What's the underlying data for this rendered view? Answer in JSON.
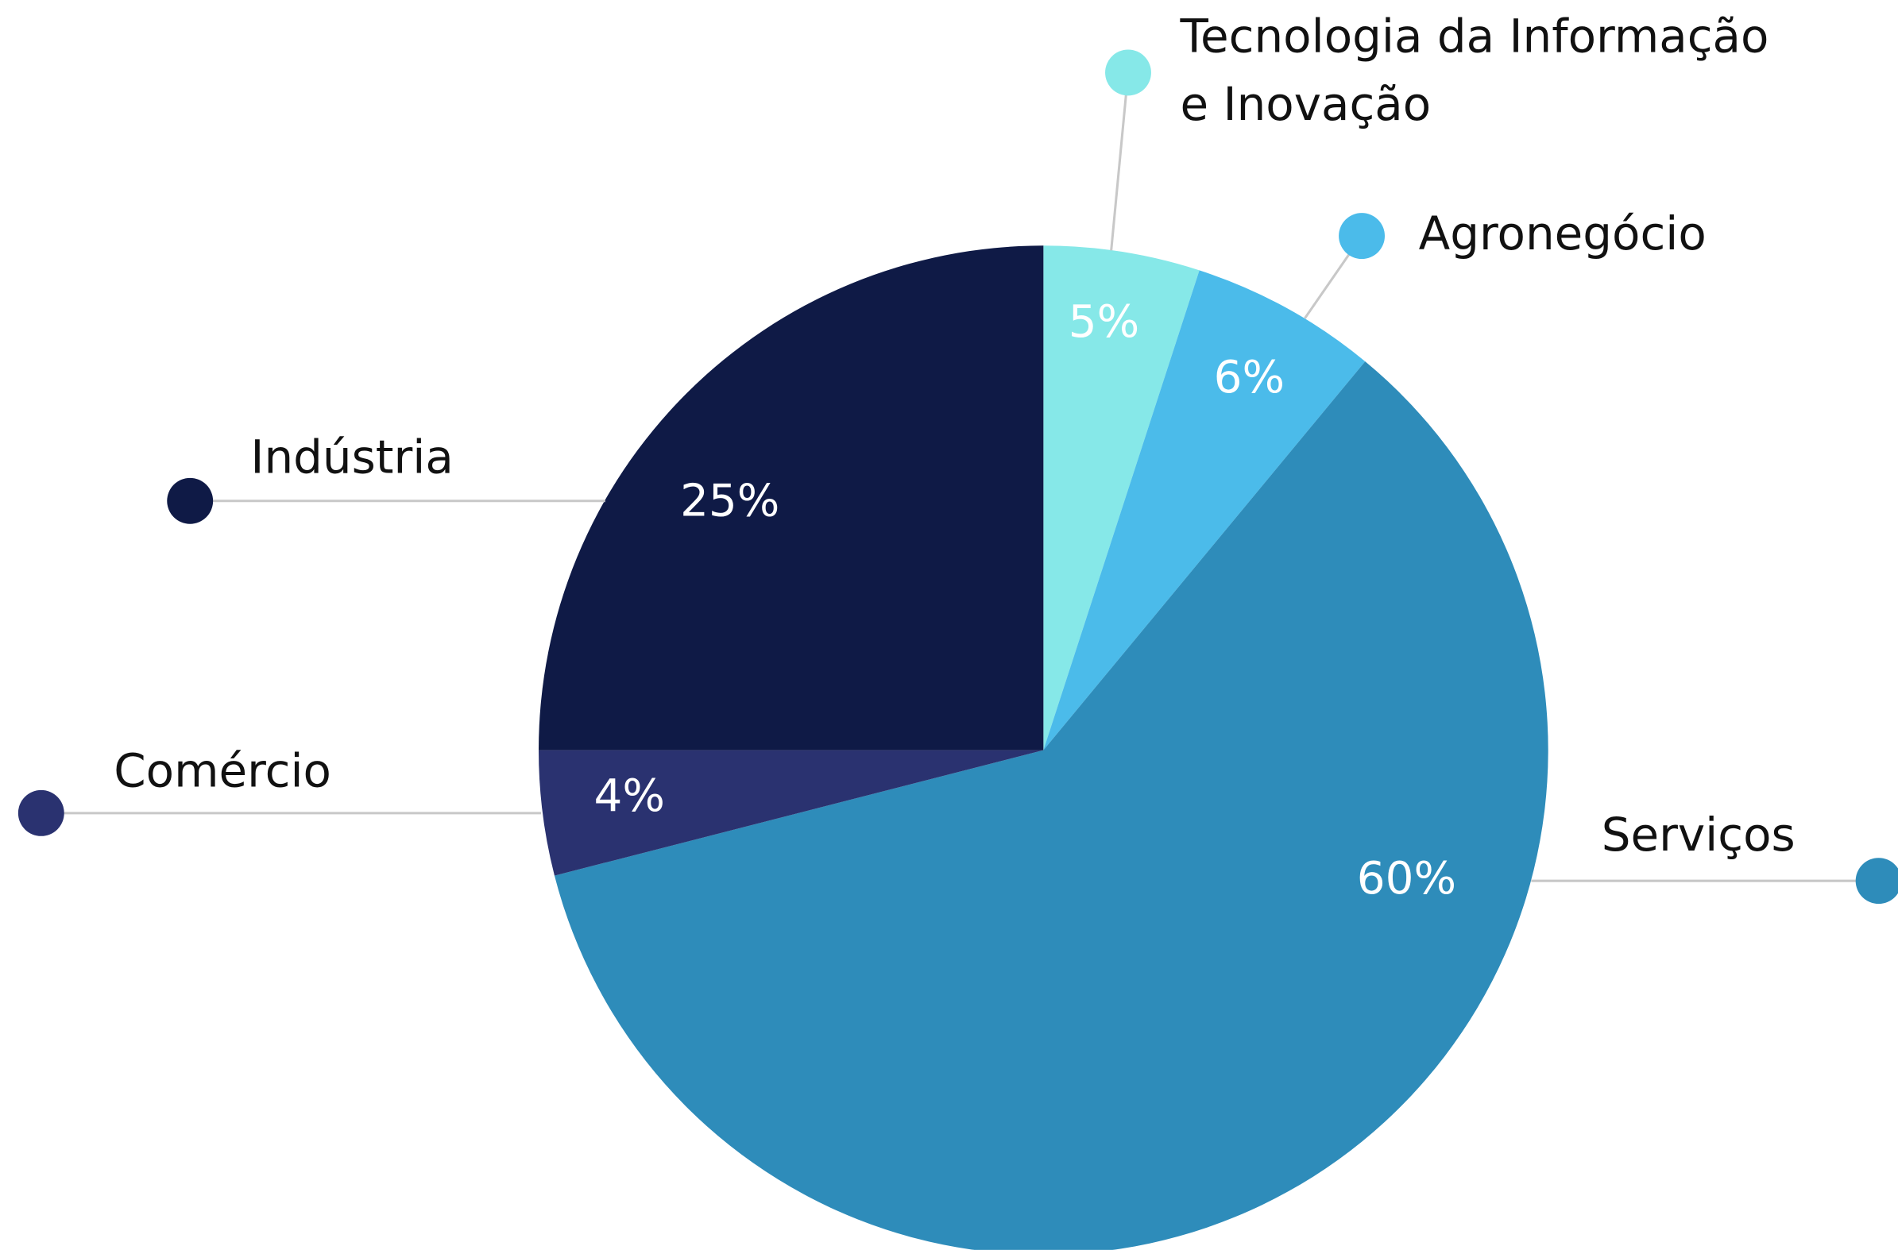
{
  "chart_data": {
    "type": "pie",
    "categories": [
      "Tecnologia da Informação e Inovação",
      "Agronegócio",
      "Serviços",
      "Comércio",
      "Indústria"
    ],
    "values": [
      5,
      6,
      60,
      4,
      25
    ],
    "value_labels": [
      "5%",
      "6%",
      "60%",
      "4%",
      "25%"
    ],
    "colors": [
      "#86e8e8",
      "#4bbbea",
      "#2e8cba",
      "#2a3270",
      "#0f1a46"
    ]
  }
}
